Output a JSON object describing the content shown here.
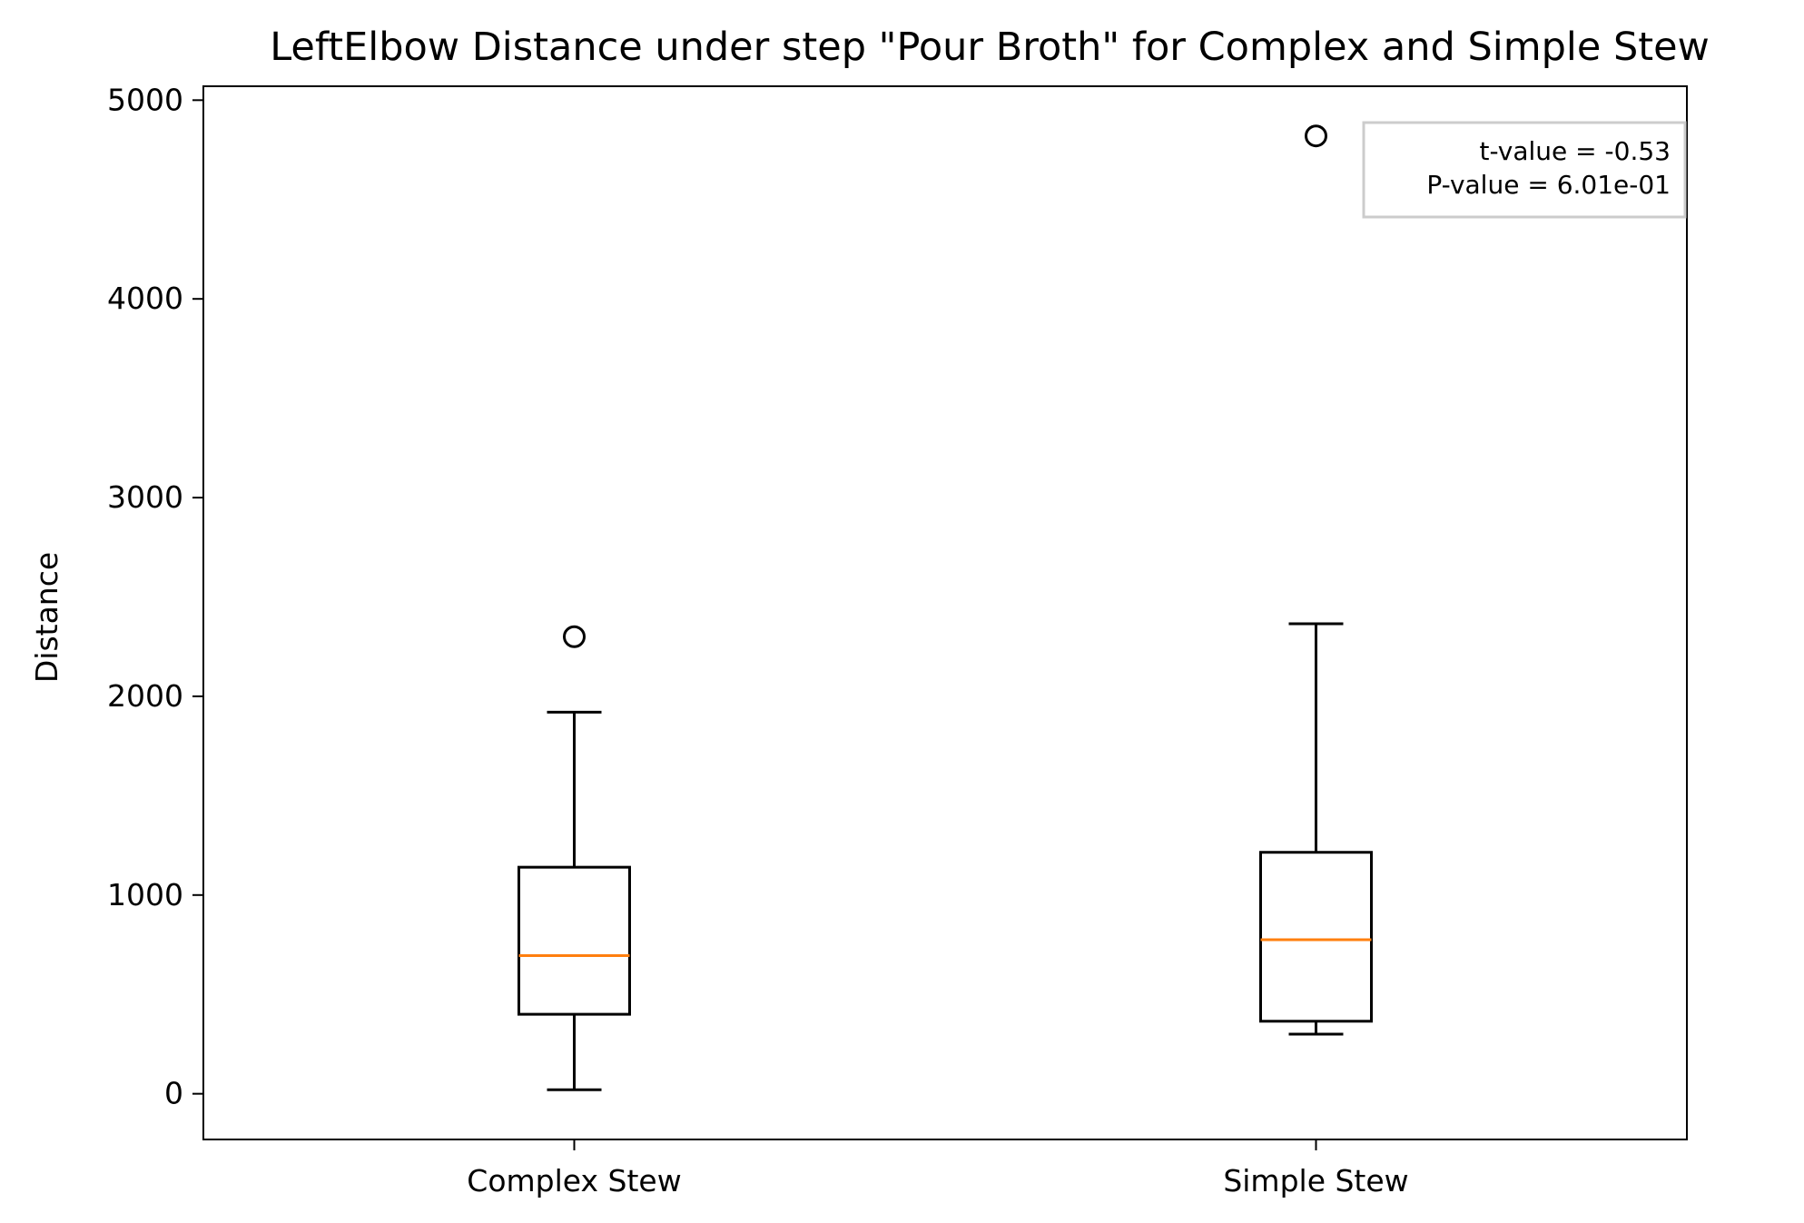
{
  "chart_data": {
    "type": "box",
    "title": "LeftElbow Distance under step \"Pour Broth\" for Complex and Simple Stew",
    "xlabel": "",
    "ylabel": "Distance",
    "ylim": [
      -230,
      5070
    ],
    "yticks": [
      0,
      1000,
      2000,
      3000,
      4000,
      5000
    ],
    "yticklabels": [
      "0",
      "1000",
      "2000",
      "3000",
      "4000",
      "5000"
    ],
    "grid": false,
    "categories": [
      "Complex Stew",
      "Simple Stew"
    ],
    "boxes": [
      {
        "label": "Complex Stew",
        "whisker_low": 20,
        "q1": 400,
        "median": 695,
        "q3": 1140,
        "whisker_high": 1920,
        "outliers": [
          2300
        ]
      },
      {
        "label": "Simple Stew",
        "whisker_low": 300,
        "q1": 365,
        "median": 775,
        "q3": 1215,
        "whisker_high": 2365,
        "outliers": [
          4820
        ]
      }
    ],
    "annotation": {
      "placement": "top-right",
      "lines": [
        "t-value = -0.53",
        "P-value = 6.01e-01"
      ]
    },
    "colors": {
      "box": "#000000",
      "median": "#ff7f0e",
      "annotation_border": "#cccccc"
    }
  }
}
